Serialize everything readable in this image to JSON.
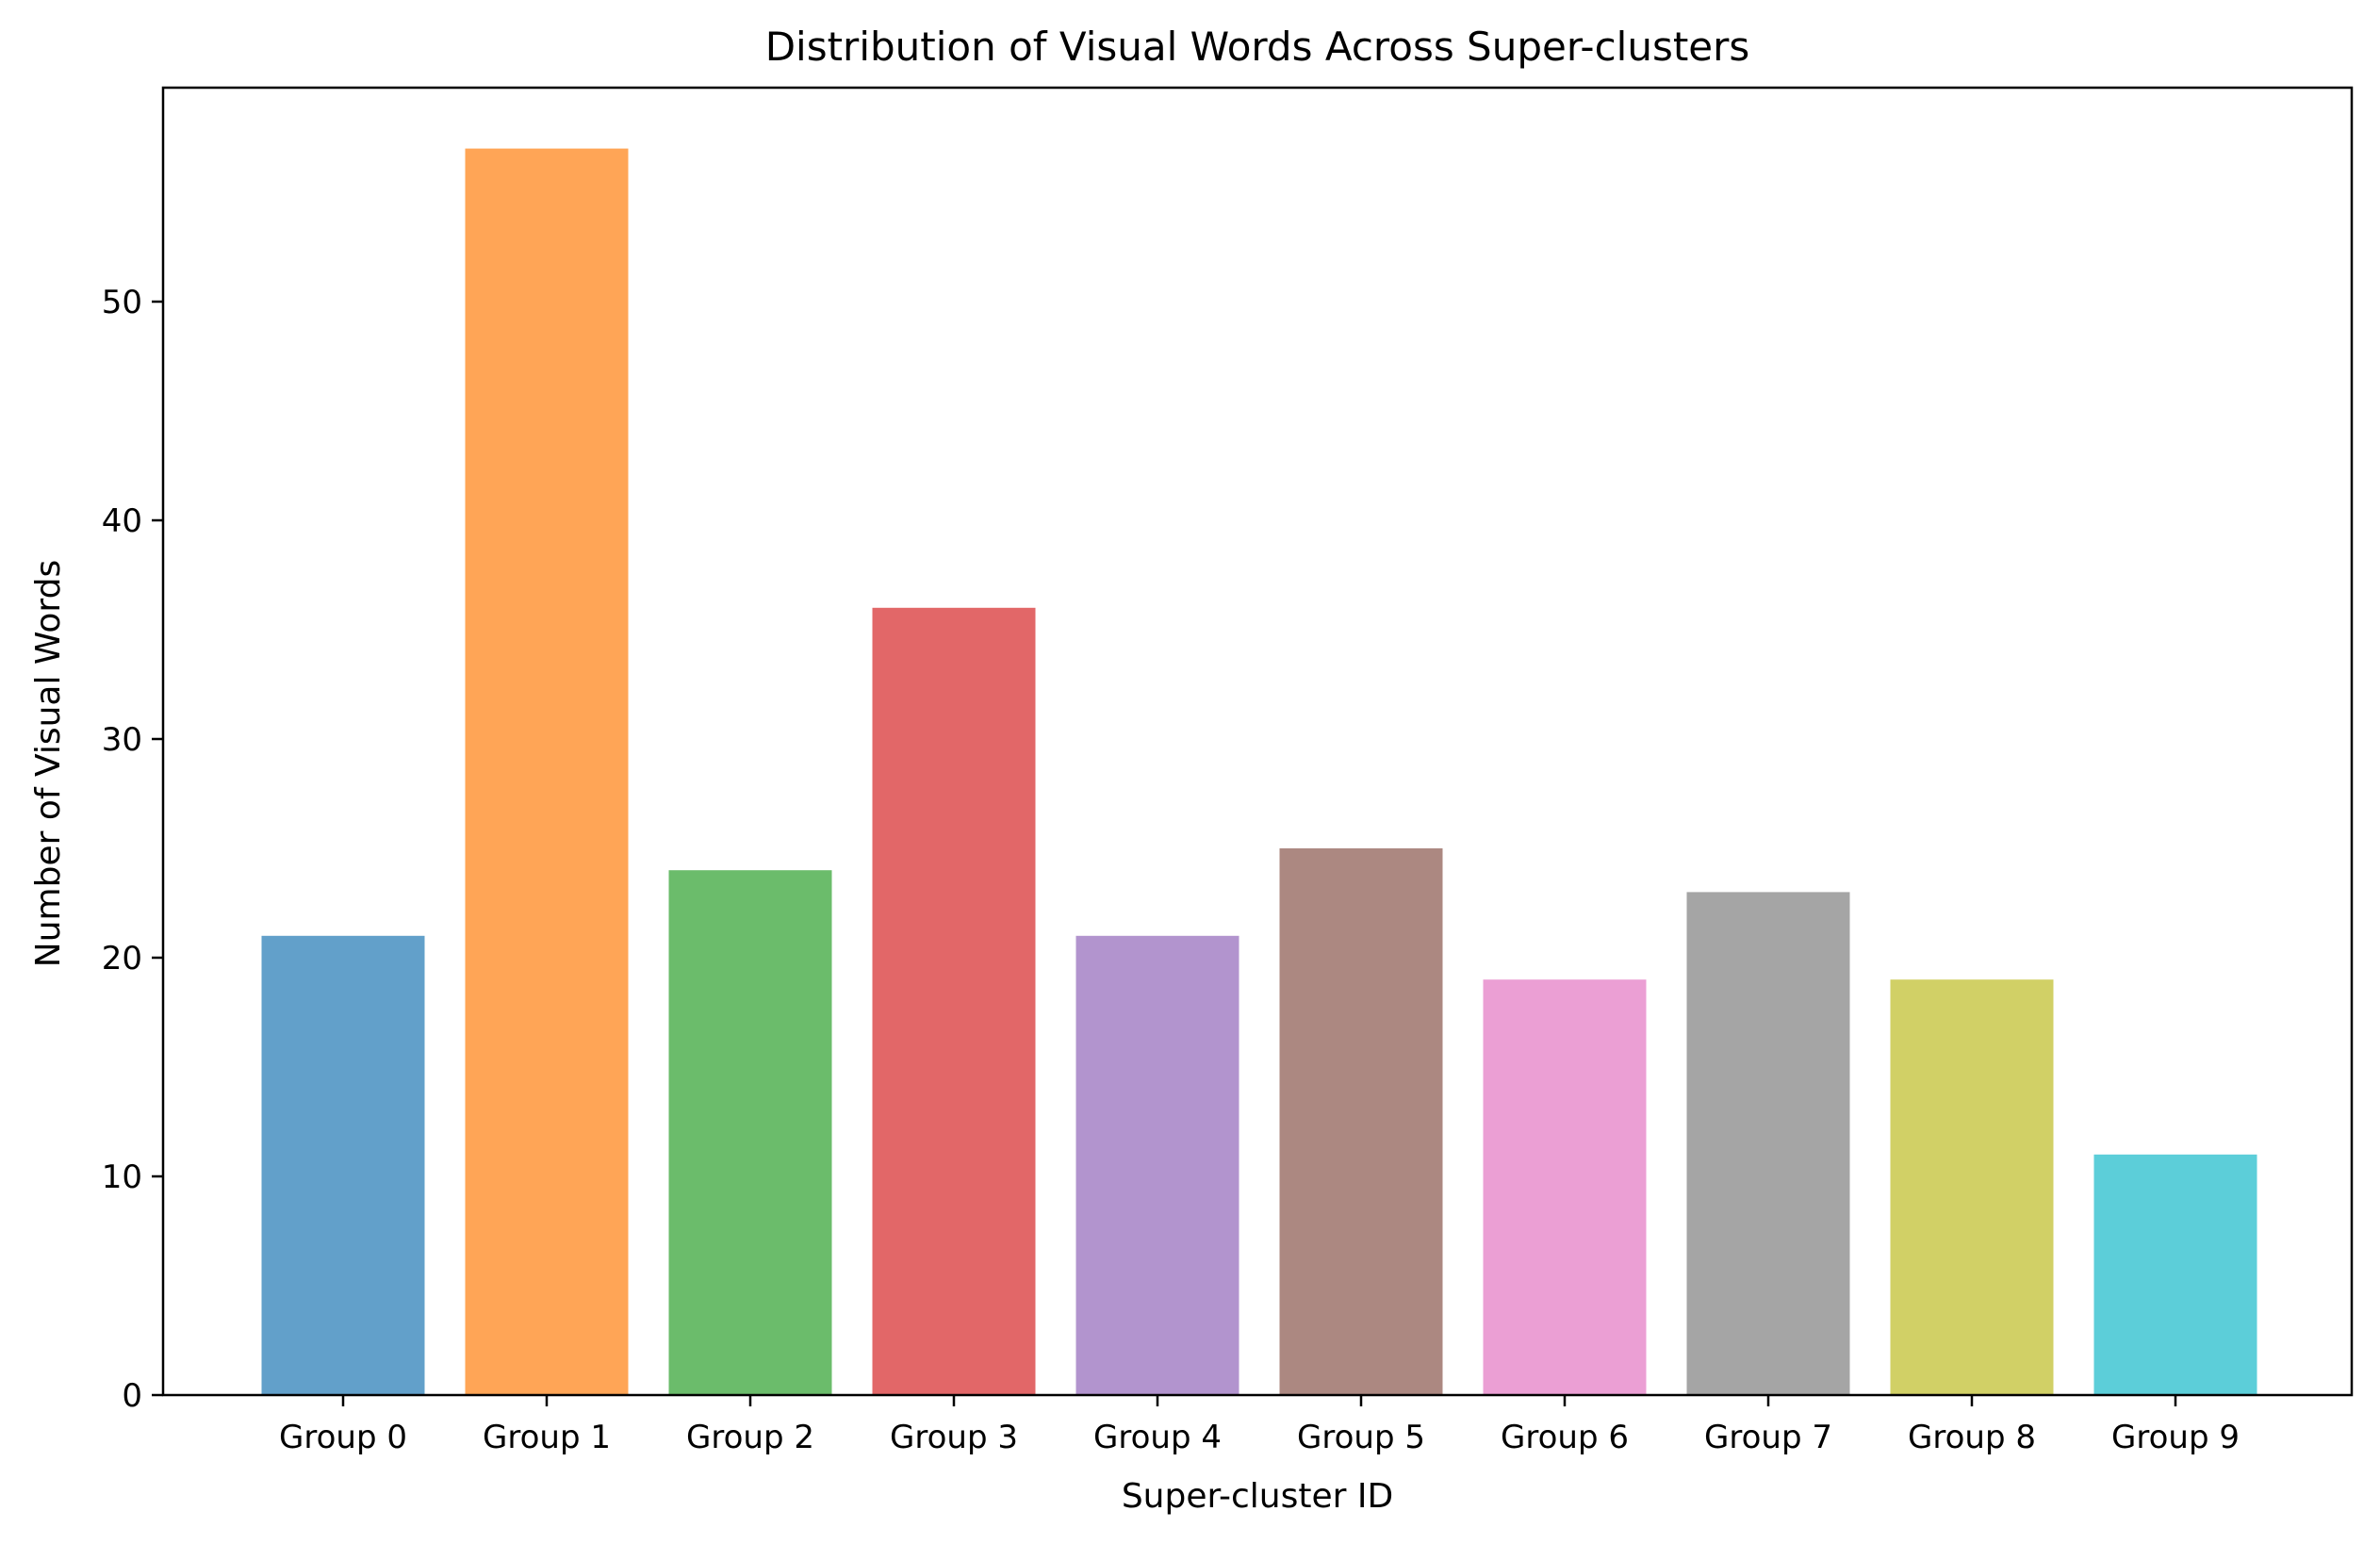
{
  "chart_data": {
    "type": "bar",
    "title": "Distribution of Visual Words Across Super-clusters",
    "xlabel": "Super-cluster ID",
    "ylabel": "Number of Visual Words",
    "categories": [
      "Group 0",
      "Group 1",
      "Group 2",
      "Group 3",
      "Group 4",
      "Group 5",
      "Group 6",
      "Group 7",
      "Group 8",
      "Group 9"
    ],
    "values": [
      21,
      57,
      24,
      36,
      21,
      25,
      19,
      23,
      19,
      11
    ],
    "colors": [
      "#62a0ca",
      "#ffa556",
      "#6bbc6b",
      "#e26768",
      "#b294ce",
      "#ac8881",
      "#eb9fd4",
      "#a5a5a5",
      "#d1d066",
      "#5cced9"
    ],
    "ylim": [
      0,
      60
    ],
    "yticks": [
      0,
      10,
      20,
      30,
      40,
      50
    ],
    "grid": false,
    "legend": "none"
  }
}
